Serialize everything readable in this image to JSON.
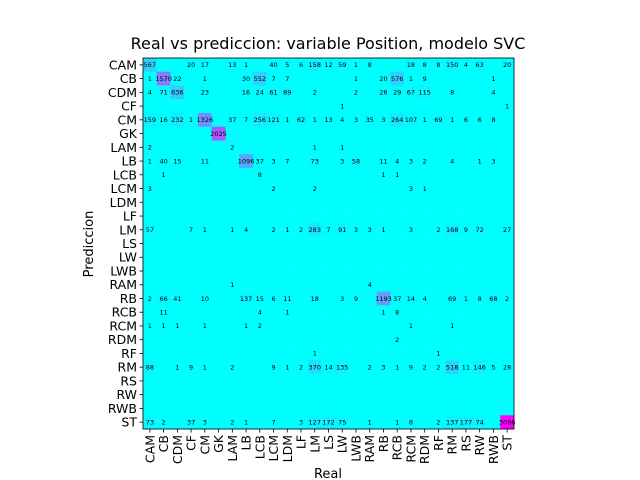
{
  "chart_data": {
    "type": "heatmap",
    "title": "Real vs prediccion: variable Position, modelo SVC",
    "xlabel": "Real",
    "ylabel": "Prediccion",
    "categories": [
      "CAM",
      "CB",
      "CDM",
      "CF",
      "CM",
      "GK",
      "LAM",
      "LB",
      "LCB",
      "LCM",
      "LDM",
      "LF",
      "LM",
      "LS",
      "LW",
      "LWB",
      "RAM",
      "RB",
      "RCB",
      "RCM",
      "RDM",
      "RF",
      "RM",
      "RS",
      "RW",
      "RWB",
      "ST"
    ],
    "colormap": "cool",
    "colors": {
      "low": "#00ffff",
      "high": "#ff00ff"
    },
    "vmax": 3086,
    "values": [
      [
        567,
        "",
        "",
        20,
        17,
        "",
        13,
        1,
        "",
        40,
        5,
        6,
        158,
        12,
        59,
        1,
        8,
        "",
        "",
        18,
        8,
        8,
        150,
        4,
        63,
        "",
        20
      ],
      [
        1,
        1570,
        22,
        "",
        1,
        "",
        "",
        30,
        552,
        7,
        7,
        "",
        "",
        "",
        "",
        1,
        "",
        20,
        576,
        1,
        9,
        "",
        "",
        "",
        "",
        1,
        ""
      ],
      [
        4,
        71,
        636,
        "",
        23,
        "",
        "",
        16,
        24,
        61,
        89,
        "",
        2,
        "",
        "",
        2,
        "",
        26,
        29,
        67,
        115,
        "",
        8,
        "",
        "",
        4,
        ""
      ],
      [
        "",
        "",
        "",
        "",
        "",
        "",
        "",
        "",
        "",
        "",
        "",
        "",
        "",
        "",
        1,
        "",
        "",
        "",
        "",
        "",
        "",
        "",
        "",
        "",
        "",
        "",
        1
      ],
      [
        159,
        16,
        232,
        1,
        1326,
        "",
        37,
        7,
        256,
        121,
        1,
        62,
        1,
        13,
        4,
        3,
        35,
        3,
        264,
        107,
        1,
        69,
        1,
        6,
        6,
        8,
        ""
      ],
      [
        "",
        "",
        "",
        "",
        "",
        2025,
        "",
        "",
        "",
        "",
        "",
        "",
        "",
        "",
        "",
        "",
        "",
        "",
        "",
        "",
        "",
        "",
        "",
        "",
        "",
        "",
        ""
      ],
      [
        2,
        "",
        "",
        "",
        "",
        "",
        2,
        "",
        "",
        "",
        "",
        "",
        1,
        "",
        1,
        "",
        "",
        "",
        "",
        "",
        "",
        "",
        "",
        "",
        "",
        "",
        ""
      ],
      [
        1,
        40,
        15,
        "",
        11,
        "",
        "",
        1096,
        37,
        3,
        7,
        "",
        73,
        "",
        3,
        58,
        "",
        11,
        4,
        3,
        2,
        "",
        4,
        "",
        1,
        3,
        ""
      ],
      [
        "",
        1,
        "",
        "",
        "",
        "",
        "",
        "",
        8,
        "",
        "",
        "",
        "",
        "",
        "",
        "",
        "",
        1,
        1,
        "",
        "",
        "",
        "",
        "",
        "",
        "",
        ""
      ],
      [
        3,
        "",
        "",
        "",
        "",
        "",
        "",
        "",
        "",
        2,
        "",
        "",
        2,
        "",
        "",
        "",
        "",
        "",
        "",
        3,
        1,
        "",
        "",
        "",
        "",
        "",
        ""
      ],
      [
        "",
        "",
        "",
        "",
        "",
        "",
        "",
        "",
        "",
        "",
        "",
        "",
        "",
        "",
        "",
        "",
        "",
        "",
        "",
        "",
        "",
        "",
        "",
        "",
        "",
        "",
        ""
      ],
      [
        "",
        "",
        "",
        "",
        "",
        "",
        "",
        "",
        "",
        "",
        "",
        "",
        "",
        "",
        "",
        "",
        "",
        "",
        "",
        "",
        "",
        "",
        "",
        "",
        "",
        "",
        ""
      ],
      [
        57,
        "",
        "",
        7,
        1,
        "",
        1,
        4,
        "",
        2,
        1,
        2,
        283,
        7,
        91,
        3,
        3,
        1,
        "",
        3,
        "",
        2,
        168,
        9,
        72,
        "",
        27
      ],
      [
        "",
        "",
        "",
        "",
        "",
        "",
        "",
        "",
        "",
        "",
        "",
        "",
        "",
        "",
        "",
        "",
        "",
        "",
        "",
        "",
        "",
        "",
        "",
        "",
        "",
        "",
        ""
      ],
      [
        "",
        "",
        "",
        "",
        "",
        "",
        "",
        "",
        "",
        "",
        "",
        "",
        "",
        "",
        "",
        "",
        "",
        "",
        "",
        "",
        "",
        "",
        "",
        "",
        "",
        "",
        ""
      ],
      [
        "",
        "",
        "",
        "",
        "",
        "",
        "",
        "",
        "",
        "",
        "",
        "",
        "",
        "",
        "",
        "",
        "",
        "",
        "",
        "",
        "",
        "",
        "",
        "",
        "",
        "",
        ""
      ],
      [
        "",
        "",
        "",
        "",
        "",
        "",
        1,
        "",
        "",
        "",
        "",
        "",
        "",
        "",
        "",
        "",
        4,
        "",
        "",
        "",
        "",
        "",
        "",
        "",
        "",
        "",
        ""
      ],
      [
        2,
        66,
        41,
        "",
        10,
        "",
        "",
        137,
        15,
        6,
        11,
        "",
        18,
        "",
        3,
        9,
        "",
        1193,
        37,
        14,
        4,
        "",
        69,
        1,
        8,
        68,
        2
      ],
      [
        "",
        11,
        "",
        "",
        "",
        "",
        "",
        "",
        4,
        "",
        1,
        "",
        "",
        "",
        "",
        "",
        "",
        1,
        8,
        "",
        "",
        "",
        "",
        "",
        "",
        "",
        ""
      ],
      [
        1,
        1,
        1,
        "",
        1,
        "",
        "",
        1,
        2,
        "",
        "",
        "",
        "",
        "",
        "",
        "",
        "",
        "",
        "",
        1,
        "",
        "",
        1,
        "",
        "",
        "",
        ""
      ],
      [
        "",
        "",
        "",
        "",
        "",
        "",
        "",
        "",
        "",
        "",
        "",
        "",
        "",
        "",
        "",
        "",
        "",
        "",
        2,
        "",
        "",
        "",
        "",
        "",
        "",
        "",
        ""
      ],
      [
        "",
        "",
        "",
        "",
        "",
        "",
        "",
        "",
        "",
        "",
        "",
        "",
        1,
        "",
        "",
        "",
        "",
        "",
        "",
        "",
        "",
        1,
        "",
        "",
        "",
        "",
        ""
      ],
      [
        88,
        "",
        1,
        9,
        1,
        "",
        2,
        "",
        "",
        9,
        1,
        2,
        370,
        14,
        135,
        "",
        2,
        3,
        1,
        9,
        2,
        2,
        518,
        11,
        146,
        5,
        28
      ],
      [
        "",
        "",
        "",
        "",
        "",
        "",
        "",
        "",
        "",
        "",
        "",
        "",
        "",
        "",
        "",
        "",
        "",
        "",
        "",
        "",
        "",
        "",
        "",
        "",
        "",
        "",
        ""
      ],
      [
        "",
        "",
        "",
        "",
        "",
        "",
        "",
        "",
        "",
        "",
        "",
        "",
        "",
        "",
        "",
        "",
        "",
        "",
        "",
        "",
        "",
        "",
        "",
        "",
        "",
        "",
        ""
      ],
      [
        "",
        "",
        "",
        "",
        "",
        "",
        "",
        "",
        "",
        "",
        "",
        "",
        "",
        "",
        "",
        "",
        "",
        "",
        "",
        "",
        "",
        "",
        "",
        "",
        "",
        "",
        ""
      ],
      [
        73,
        2,
        "",
        37,
        3,
        "",
        2,
        1,
        "",
        7,
        "",
        3,
        127,
        172,
        75,
        "",
        1,
        "",
        1,
        8,
        "",
        2,
        137,
        177,
        74,
        "",
        3086
      ]
    ]
  }
}
